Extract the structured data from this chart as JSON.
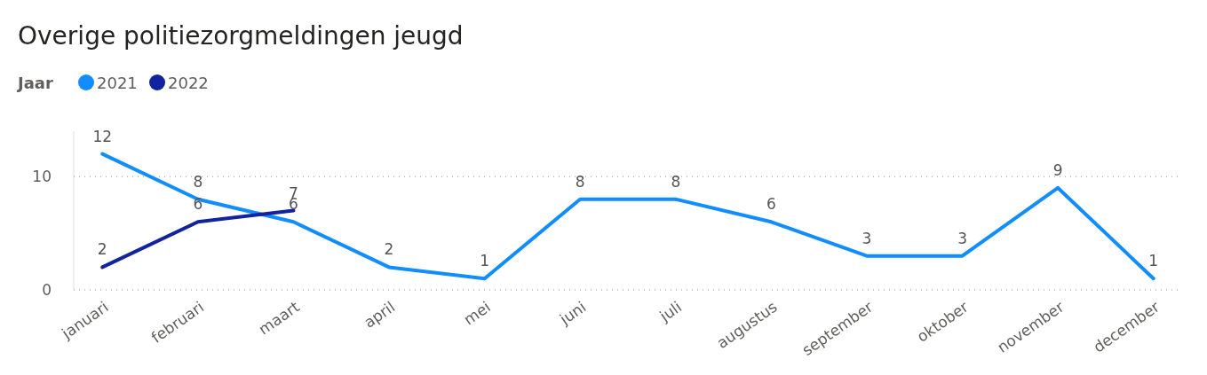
{
  "chart_data": {
    "type": "line",
    "title": "Overige politiezorgmeldingen jeugd",
    "legend_title": "Jaar",
    "categories": [
      "januari",
      "februari",
      "maart",
      "april",
      "mei",
      "juni",
      "juli",
      "augustus",
      "september",
      "oktober",
      "november",
      "december"
    ],
    "series": [
      {
        "name": "2021",
        "color": "#118dff",
        "values": [
          12,
          8,
          6,
          2,
          1,
          8,
          8,
          6,
          3,
          3,
          9,
          1
        ]
      },
      {
        "name": "2022",
        "color": "#12239e",
        "values": [
          2,
          6,
          7,
          null,
          null,
          null,
          null,
          null,
          null,
          null,
          null,
          null
        ]
      }
    ],
    "ylim": [
      0,
      14
    ],
    "yticks": [
      0,
      10
    ],
    "grid": "y",
    "legend": "top left",
    "data_labels": true,
    "marker": "none",
    "line_style": "solid"
  }
}
